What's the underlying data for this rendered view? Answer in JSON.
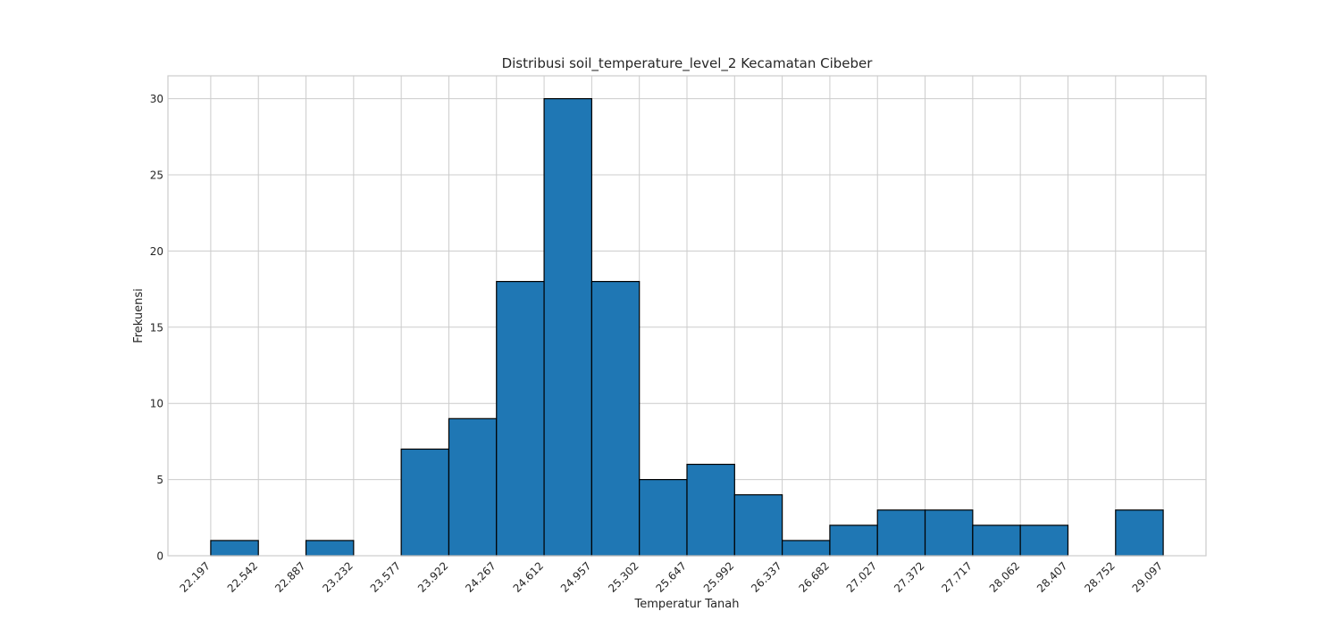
{
  "chart_data": {
    "type": "bar",
    "title": "Distribusi soil_temperature_level_2 Kecamatan Cibeber",
    "xlabel": "Temperatur Tanah",
    "ylabel": "Frekuensi",
    "bin_edges": [
      22.197,
      22.542,
      22.887,
      23.232,
      23.577,
      23.922,
      24.267,
      24.612,
      24.957,
      25.302,
      25.647,
      25.992,
      26.337,
      26.682,
      27.027,
      27.372,
      27.717,
      28.062,
      28.407,
      28.752,
      29.097
    ],
    "x_tick_labels": [
      "22.197",
      "22.542",
      "22.887",
      "23.232",
      "23.577",
      "23.922",
      "24.267",
      "24.612",
      "24.957",
      "25.302",
      "25.647",
      "25.992",
      "26.337",
      "26.682",
      "27.027",
      "27.372",
      "27.717",
      "28.062",
      "28.407",
      "28.752",
      "29.097"
    ],
    "values": [
      1,
      0,
      1,
      0,
      7,
      9,
      18,
      30,
      18,
      5,
      6,
      4,
      1,
      2,
      3,
      3,
      2,
      2,
      0,
      3
    ],
    "ylim": [
      0,
      31.5
    ],
    "y_ticks": [
      0,
      5,
      10,
      15,
      20,
      25,
      30
    ],
    "xlim": [
      21.887,
      29.407
    ],
    "grid": true,
    "bar_color": "#1f77b4",
    "edge_color": "#000000",
    "grid_color": "#cccccc"
  }
}
